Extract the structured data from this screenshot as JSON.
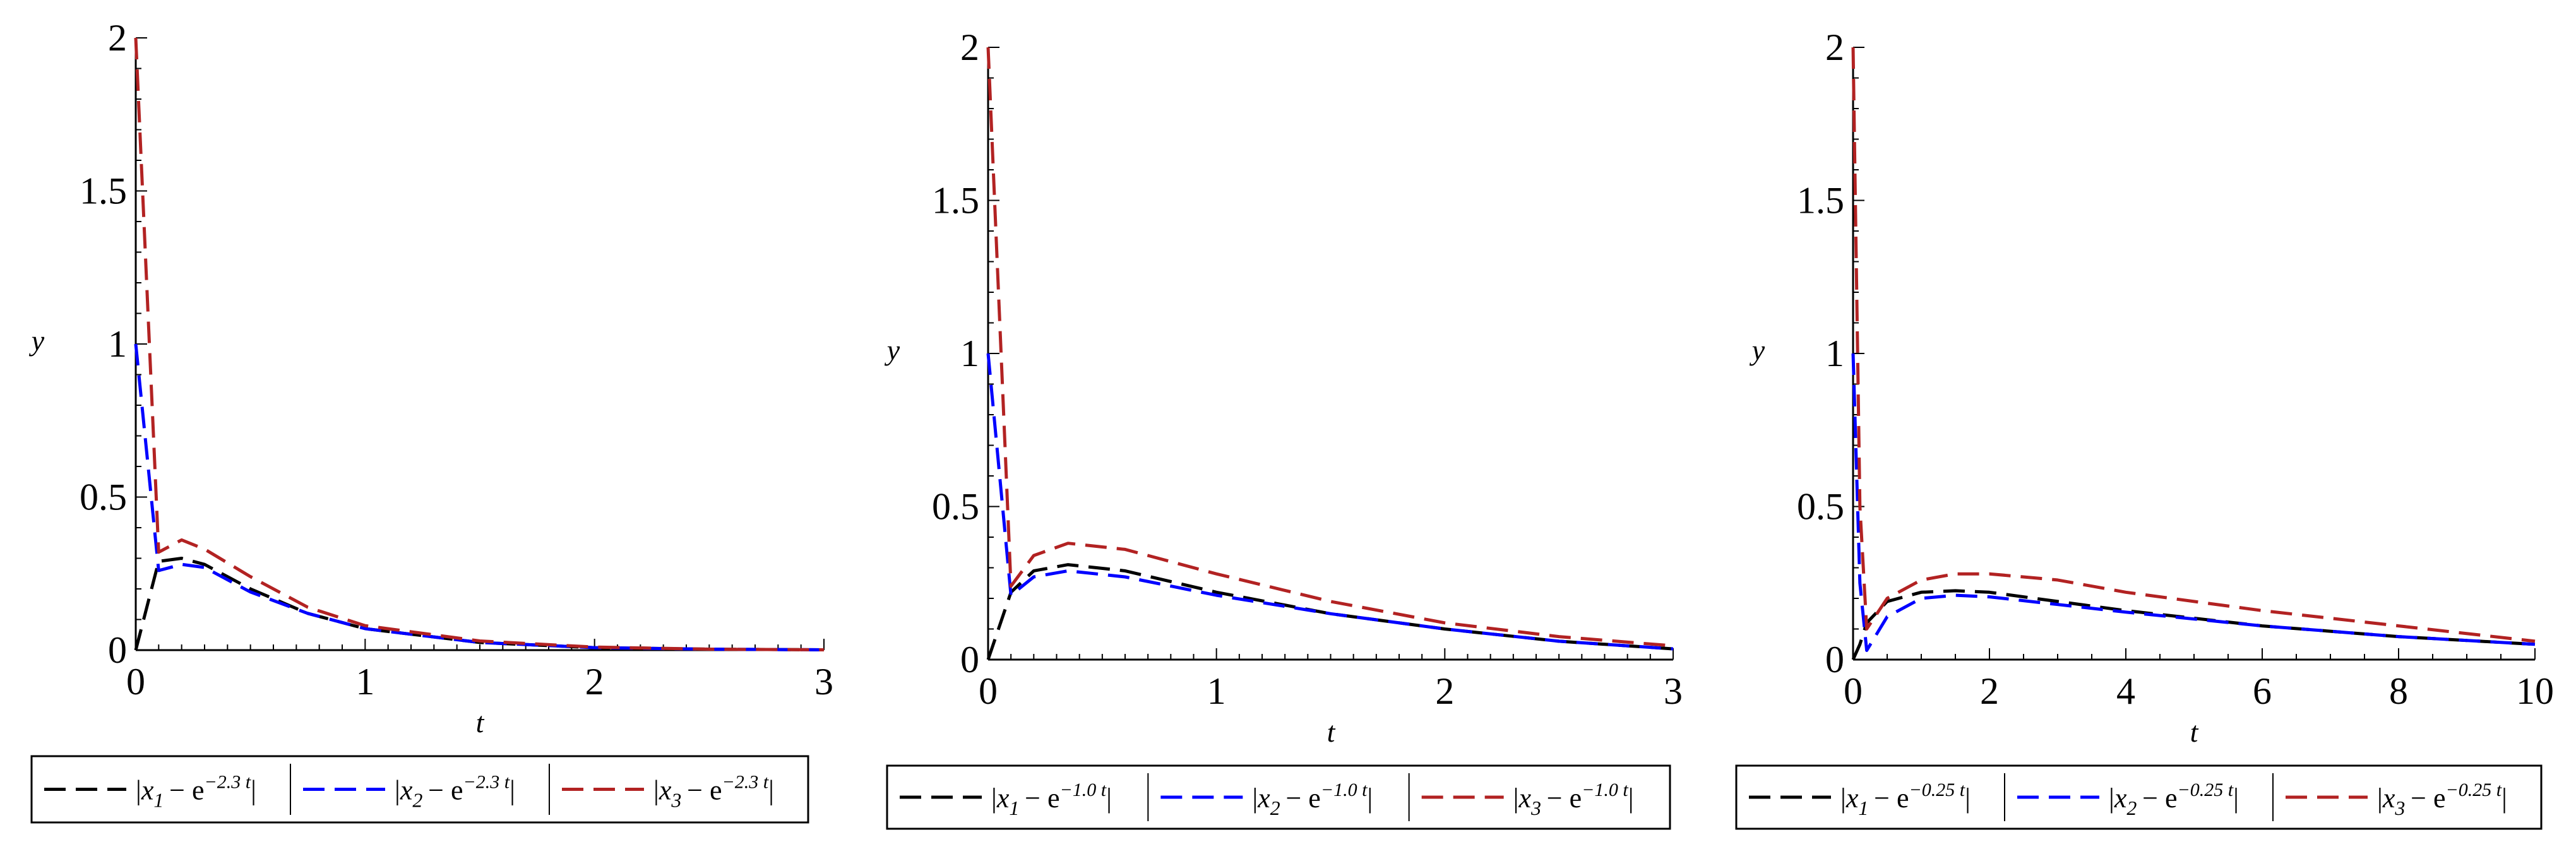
{
  "chart_data": [
    {
      "type": "line",
      "xlabel": "t",
      "ylabel": "y",
      "xlim": [
        0,
        3
      ],
      "ylim": [
        0,
        2
      ],
      "xticks": [
        "0",
        "1",
        "2",
        "3"
      ],
      "yticks": [
        "0",
        "0.5",
        "1",
        "1.5",
        "2"
      ],
      "legend_position": "bottom",
      "series": [
        {
          "name": "|x1 − e^(−2.3 t)|",
          "var": "x",
          "sub": "1",
          "exp": "−2.3 t",
          "color": "#000000",
          "x": [
            0,
            0.1,
            0.2,
            0.3,
            0.5,
            0.75,
            1.0,
            1.5,
            2.0,
            2.5,
            3.0
          ],
          "y": [
            0,
            0.29,
            0.3,
            0.28,
            0.2,
            0.12,
            0.07,
            0.025,
            0.008,
            0.003,
            0.001
          ]
        },
        {
          "name": "|x2 − e^(−2.3 t)|",
          "var": "x",
          "sub": "2",
          "exp": "−2.3 t",
          "color": "#0000ff",
          "x": [
            0,
            0.1,
            0.2,
            0.3,
            0.5,
            0.75,
            1.0,
            1.5,
            2.0,
            2.5,
            3.0
          ],
          "y": [
            1.0,
            0.26,
            0.28,
            0.27,
            0.19,
            0.12,
            0.07,
            0.025,
            0.008,
            0.003,
            0.001
          ]
        },
        {
          "name": "|x3 − e^(−2.3 t)|",
          "var": "x",
          "sub": "3",
          "exp": "−2.3 t",
          "color": "#b22222",
          "x": [
            0,
            0.1,
            0.2,
            0.3,
            0.5,
            0.75,
            1.0,
            1.5,
            2.0,
            2.5,
            3.0
          ],
          "y": [
            2.0,
            0.32,
            0.36,
            0.33,
            0.24,
            0.14,
            0.08,
            0.03,
            0.01,
            0.003,
            0.001
          ]
        }
      ]
    },
    {
      "type": "line",
      "xlabel": "t",
      "ylabel": "y",
      "xlim": [
        0,
        3
      ],
      "ylim": [
        0,
        2
      ],
      "xticks": [
        "0",
        "1",
        "2",
        "3"
      ],
      "yticks": [
        "0",
        "0.5",
        "1",
        "1.5",
        "2"
      ],
      "legend_position": "bottom",
      "series": [
        {
          "name": "|x1 − e^(−1.0 t)|",
          "var": "x",
          "sub": "1",
          "exp": "−1.0 t",
          "color": "#000000",
          "x": [
            0,
            0.1,
            0.2,
            0.35,
            0.6,
            1.0,
            1.5,
            2.0,
            2.5,
            3.0
          ],
          "y": [
            0,
            0.22,
            0.29,
            0.31,
            0.29,
            0.22,
            0.15,
            0.1,
            0.06,
            0.035
          ]
        },
        {
          "name": "|x2 − e^(−1.0 t)|",
          "var": "x",
          "sub": "2",
          "exp": "−1.0 t",
          "color": "#0000ff",
          "x": [
            0,
            0.1,
            0.2,
            0.35,
            0.6,
            1.0,
            1.5,
            2.0,
            2.5,
            3.0
          ],
          "y": [
            1.0,
            0.21,
            0.27,
            0.29,
            0.27,
            0.21,
            0.15,
            0.1,
            0.06,
            0.035
          ]
        },
        {
          "name": "|x3 − e^(−1.0 t)|",
          "var": "x",
          "sub": "3",
          "exp": "−1.0 t",
          "color": "#b22222",
          "x": [
            0,
            0.1,
            0.2,
            0.35,
            0.6,
            1.0,
            1.5,
            2.0,
            2.5,
            3.0
          ],
          "y": [
            2.0,
            0.24,
            0.34,
            0.38,
            0.36,
            0.28,
            0.19,
            0.12,
            0.075,
            0.045
          ]
        }
      ]
    },
    {
      "type": "line",
      "xlabel": "t",
      "ylabel": "y",
      "xlim": [
        0,
        10
      ],
      "ylim": [
        0,
        2
      ],
      "xticks": [
        "0",
        "2",
        "4",
        "6",
        "8",
        "10"
      ],
      "yticks": [
        "0",
        "0.5",
        "1",
        "1.5",
        "2"
      ],
      "legend_position": "bottom",
      "series": [
        {
          "name": "|x1 − e^(−0.25 t)|",
          "var": "x",
          "sub": "1",
          "exp": "−0.25 t",
          "color": "#000000",
          "x": [
            0,
            0.1,
            0.2,
            0.5,
            1.0,
            1.5,
            2.0,
            3.0,
            4.0,
            6.0,
            8.0,
            10.0
          ],
          "y": [
            0,
            0.05,
            0.12,
            0.19,
            0.22,
            0.225,
            0.22,
            0.19,
            0.16,
            0.11,
            0.075,
            0.05
          ]
        },
        {
          "name": "|x2 − e^(−0.25 t)|",
          "var": "x",
          "sub": "2",
          "exp": "−0.25 t",
          "color": "#0000ff",
          "x": [
            0,
            0.1,
            0.2,
            0.5,
            1.0,
            1.5,
            2.0,
            3.0,
            4.0,
            6.0,
            8.0,
            10.0
          ],
          "y": [
            1.0,
            0.25,
            0.03,
            0.14,
            0.2,
            0.21,
            0.205,
            0.18,
            0.155,
            0.11,
            0.075,
            0.05
          ]
        },
        {
          "name": "|x3 − e^(−0.25 t)|",
          "var": "x",
          "sub": "3",
          "exp": "−0.25 t",
          "color": "#b22222",
          "x": [
            0,
            0.1,
            0.2,
            0.5,
            1.0,
            1.5,
            2.0,
            3.0,
            4.0,
            6.0,
            8.0,
            10.0
          ],
          "y": [
            2.0,
            0.5,
            0.1,
            0.2,
            0.26,
            0.28,
            0.28,
            0.26,
            0.22,
            0.16,
            0.11,
            0.06
          ]
        }
      ]
    }
  ]
}
